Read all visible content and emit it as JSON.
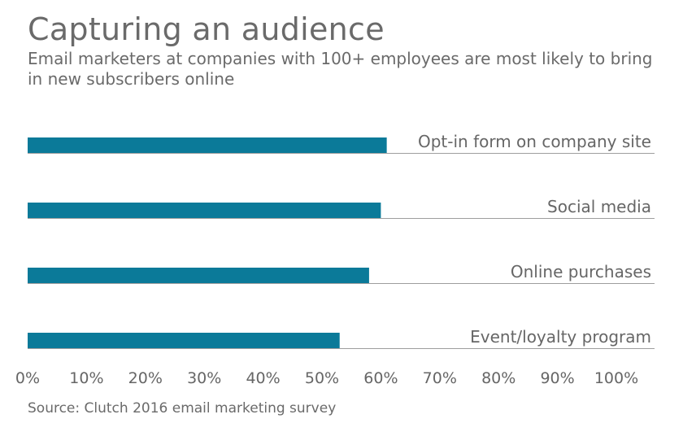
{
  "chart_data": {
    "type": "bar",
    "orientation": "horizontal",
    "title": "Capturing an audience",
    "subtitle": "Email marketers at companies with 100+ employees are most likely to bring in new subscribers online",
    "categories": [
      "Opt-in form on company site",
      "Social media",
      "Online purchases",
      "Event/loyalty program"
    ],
    "values": [
      61,
      60,
      58,
      53
    ],
    "unit": "%",
    "xlim": [
      0,
      100
    ],
    "xticks": [
      0,
      10,
      20,
      30,
      40,
      50,
      60,
      70,
      80,
      90,
      100
    ],
    "xtick_labels": [
      "0%",
      "10%",
      "20%",
      "30%",
      "40%",
      "50%",
      "60%",
      "70%",
      "80%",
      "90%",
      "100%"
    ],
    "grid": false,
    "legend": "none",
    "source": "Source: Clutch 2016 email marketing survey",
    "colors": {
      "bar": "#0b7a99",
      "baseline": "#9e9e9e",
      "text": "#666666"
    }
  }
}
